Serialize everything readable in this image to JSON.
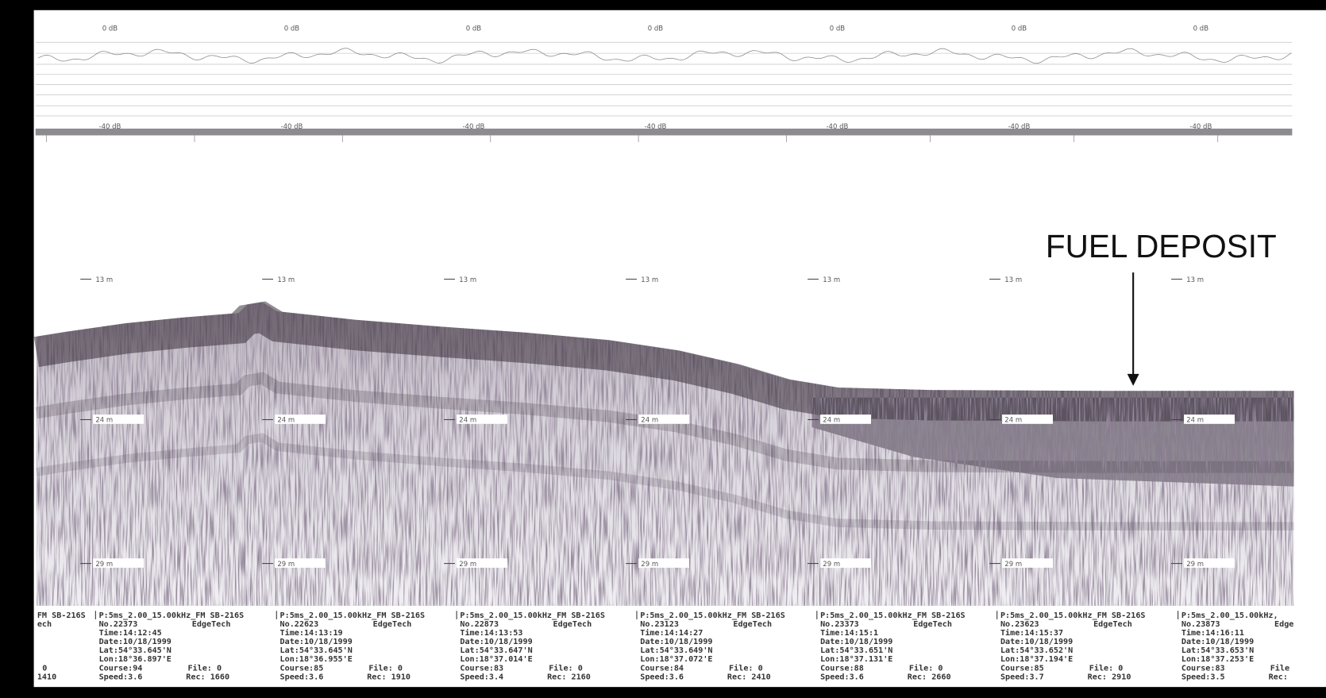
{
  "top_trace": {
    "top_labels": [
      "0 dB",
      "0 dB",
      "0 dB",
      "0 dB",
      "0 dB",
      "0 dB",
      "0 dB"
    ],
    "bottom_labels": [
      "-40 dB",
      "-40 dB",
      "-40 dB",
      "-40 dB",
      "-40 dB",
      "-40 dB",
      "-40 dB"
    ]
  },
  "depth_labels": {
    "upper": [
      "13 m",
      "13 m",
      "13 m",
      "13 m",
      "13 m",
      "13 m",
      "13 m"
    ],
    "middle": [
      "24 m",
      "24 m",
      "24 m",
      "24 m",
      "24 m",
      "24 m",
      "24 m"
    ],
    "lower": [
      "29 m",
      "29 m",
      "29 m",
      "29 m",
      "29 m",
      "29 m",
      "29 m"
    ]
  },
  "annotation": "FUEL DEPOSIT",
  "records_partial": {
    "header": "FM SB-216S",
    "maker": "ech",
    "file": "0",
    "rec": "1410"
  },
  "records": [
    {
      "header": "P:5ms_2.00_15.00kHz_FM SB-216S",
      "no": "No.22373",
      "maker": "EdgeTech",
      "time": "Time:14:12:45",
      "date": "Date:10/18/1999",
      "lat": "Lat:54°33.645'N",
      "lon": "Lon:18°36.897'E",
      "course": "Course:94",
      "speed": "Speed:3.6",
      "file": "File: 0",
      "rec": "Rec: 1660"
    },
    {
      "header": "P:5ms_2.00_15.00kHz_FM SB-216S",
      "no": "No.22623",
      "maker": "EdgeTech",
      "time": "Time:14:13:19",
      "date": "Date:10/18/1999",
      "lat": "Lat:54°33.645'N",
      "lon": "Lon:18°36.955'E",
      "course": "Course:85",
      "speed": "Speed:3.6",
      "file": "File: 0",
      "rec": "Rec: 1910"
    },
    {
      "header": "P:5ms_2.00_15.00kHz_FM SB-216S",
      "no": "No.22873",
      "maker": "EdgeTech",
      "time": "Time:14:13:53",
      "date": "Date:10/18/1999",
      "lat": "Lat:54°33.647'N",
      "lon": "Lon:18°37.014'E",
      "course": "Course:83",
      "speed": "Speed:3.4",
      "file": "File: 0",
      "rec": "Rec: 2160"
    },
    {
      "header": "P:5ms_2.00_15.00kHz_FM SB-216S",
      "no": "No.23123",
      "maker": "EdgeTech",
      "time": "Time:14:14:27",
      "date": "Date:10/18/1999",
      "lat": "Lat:54°33.649'N",
      "lon": "Lon:18°37.072'E",
      "course": "Course:84",
      "speed": "Speed:3.6",
      "file": "File: 0",
      "rec": "Rec: 2410"
    },
    {
      "header": "P:5ms_2.00_15.00kHz_FM SB-216S",
      "no": "No.23373",
      "maker": "EdgeTech",
      "time": "Time:14:15:1",
      "date": "Date:10/18/1999",
      "lat": "Lat:54°33.651'N",
      "lon": "Lon:18°37.131'E",
      "course": "Course:88",
      "speed": "Speed:3.6",
      "file": "File: 0",
      "rec": "Rec: 2660"
    },
    {
      "header": "P:5ms_2.00_15.00kHz_FM SB-216S",
      "no": "No.23623",
      "maker": "EdgeTech",
      "time": "Time:14:15:37",
      "date": "Date:10/18/1999",
      "lat": "Lat:54°33.652'N",
      "lon": "Lon:18°37.194'E",
      "course": "Course:85",
      "speed": "Speed:3.7",
      "file": "File: 0",
      "rec": "Rec: 2910"
    },
    {
      "header": "P:5ms_2.00_15.00kHz,",
      "no": "No.23873",
      "maker": "Edge",
      "time": "Time:14:16:11",
      "date": "Date:10/18/1999",
      "lat": "Lat:54°33.653'N",
      "lon": "Lon:18°37.253'E",
      "course": "Course:83",
      "speed": "Speed:3.5",
      "file": "File",
      "rec": "Rec:"
    }
  ]
}
